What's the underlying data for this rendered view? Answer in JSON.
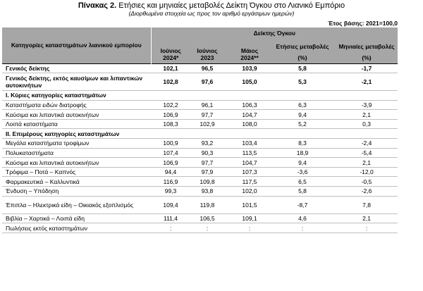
{
  "title": {
    "prefix": "Πίνακας 2.",
    "text": " Ετήσιες και μηνιαίες μεταβολές Δείκτη Όγκου στο Λιανικό Εμπόριο",
    "subtitle": "(Διορθωμένα στοιχεία ως προς τον αριθμό εργάσιμων ημερών)",
    "base_year": "Έτος βάσης: 2021=100,0"
  },
  "header": {
    "category_label": "Κατηγορίες καταστημάτων λιανικού εμπορίου",
    "volume_index_label": "Δείκτης Όγκου",
    "columns": [
      {
        "line1": "Ιούνιος",
        "line2": "2024*"
      },
      {
        "line1": "Ιούνιος",
        "line2": "2023"
      },
      {
        "line1": "Μάιος",
        "line2": "2024**"
      },
      {
        "line1": "Ετήσιες μεταβολές",
        "line2": "(%)"
      },
      {
        "line1": "Μηνιαίες μεταβολές",
        "line2": "(%)"
      }
    ]
  },
  "rows": [
    {
      "label": "Γενικός δείκτης",
      "values": [
        "102,1",
        "96,5",
        "103,9",
        "5,8",
        "-1,7"
      ],
      "style": "bold"
    },
    {
      "label": "Γενικός δείκτης, εκτός καυσίμων και λιπαντικών αυτοκινήτων",
      "values": [
        "102,8",
        "97,6",
        "105,0",
        "5,3",
        "-2,1"
      ],
      "style": "bold-tall"
    },
    {
      "label": "I. Κύριες κατηγορίες καταστημάτων",
      "values": [
        "",
        "",
        "",
        "",
        ""
      ],
      "style": "section"
    },
    {
      "label": "Καταστήματα ειδών διατροφής",
      "values": [
        "102,2",
        "96,1",
        "106,3",
        "6,3",
        "-3,9"
      ],
      "style": "normal"
    },
    {
      "label": "Καύσιμα και λιπαντικά αυτοκινήτων",
      "values": [
        "106,9",
        "97,7",
        "104,7",
        "9,4",
        "2,1"
      ],
      "style": "normal"
    },
    {
      "label": "Λοιπά καταστήματα",
      "values": [
        "108,3",
        "102,9",
        "108,0",
        "5,2",
        "0,3"
      ],
      "style": "normal"
    },
    {
      "label": "II. Επιμέρους κατηγορίες καταστημάτων",
      "values": [
        "",
        "",
        "",
        "",
        ""
      ],
      "style": "section"
    },
    {
      "label": "Μεγάλα καταστήματα τροφίμων",
      "values": [
        "100,9",
        "93,2",
        "103,4",
        "8,3",
        "-2,4"
      ],
      "style": "normal"
    },
    {
      "label": "Πολυκαταστήματα",
      "values": [
        "107,4",
        "90,3",
        "113,5",
        "18,9",
        "-5,4"
      ],
      "style": "normal"
    },
    {
      "label": "Καύσιμα και λιπαντικά αυτοκινήτων",
      "values": [
        "106,9",
        "97,7",
        "104,7",
        "9,4",
        "2,1"
      ],
      "style": "normal"
    },
    {
      "label": "Τρόφιμα – Ποτά – Καπνός",
      "values": [
        "94,4",
        "97,9",
        "107,3",
        "-3,6",
        "-12,0"
      ],
      "style": "normal"
    },
    {
      "label": "Φαρμακευτικά – Καλλυντικά",
      "values": [
        "116,9",
        "109,8",
        "117,5",
        "6,5",
        "-0,5"
      ],
      "style": "normal"
    },
    {
      "label": "Ένδυση – Υπόδηση",
      "values": [
        "99,3",
        "93,8",
        "102,0",
        "5,8",
        "-2,6"
      ],
      "style": "normal"
    },
    {
      "label": "Έπιπλα – Ηλεκτρικά είδη – Οικιακός εξοπλισμός",
      "values": [
        "109,4",
        "119,8",
        "101,5",
        "-8,7",
        "7,8"
      ],
      "style": "tall"
    },
    {
      "label": "Βιβλία – Χαρτικά – Λοιπά είδη",
      "values": [
        "111,4",
        "106,5",
        "109,1",
        "4,6",
        "2,1"
      ],
      "style": "normal"
    },
    {
      "label": "Πωλήσεις εκτός καταστημάτων",
      "values": [
        ":",
        ":",
        ":",
        ":",
        ":"
      ],
      "style": "normal"
    }
  ]
}
